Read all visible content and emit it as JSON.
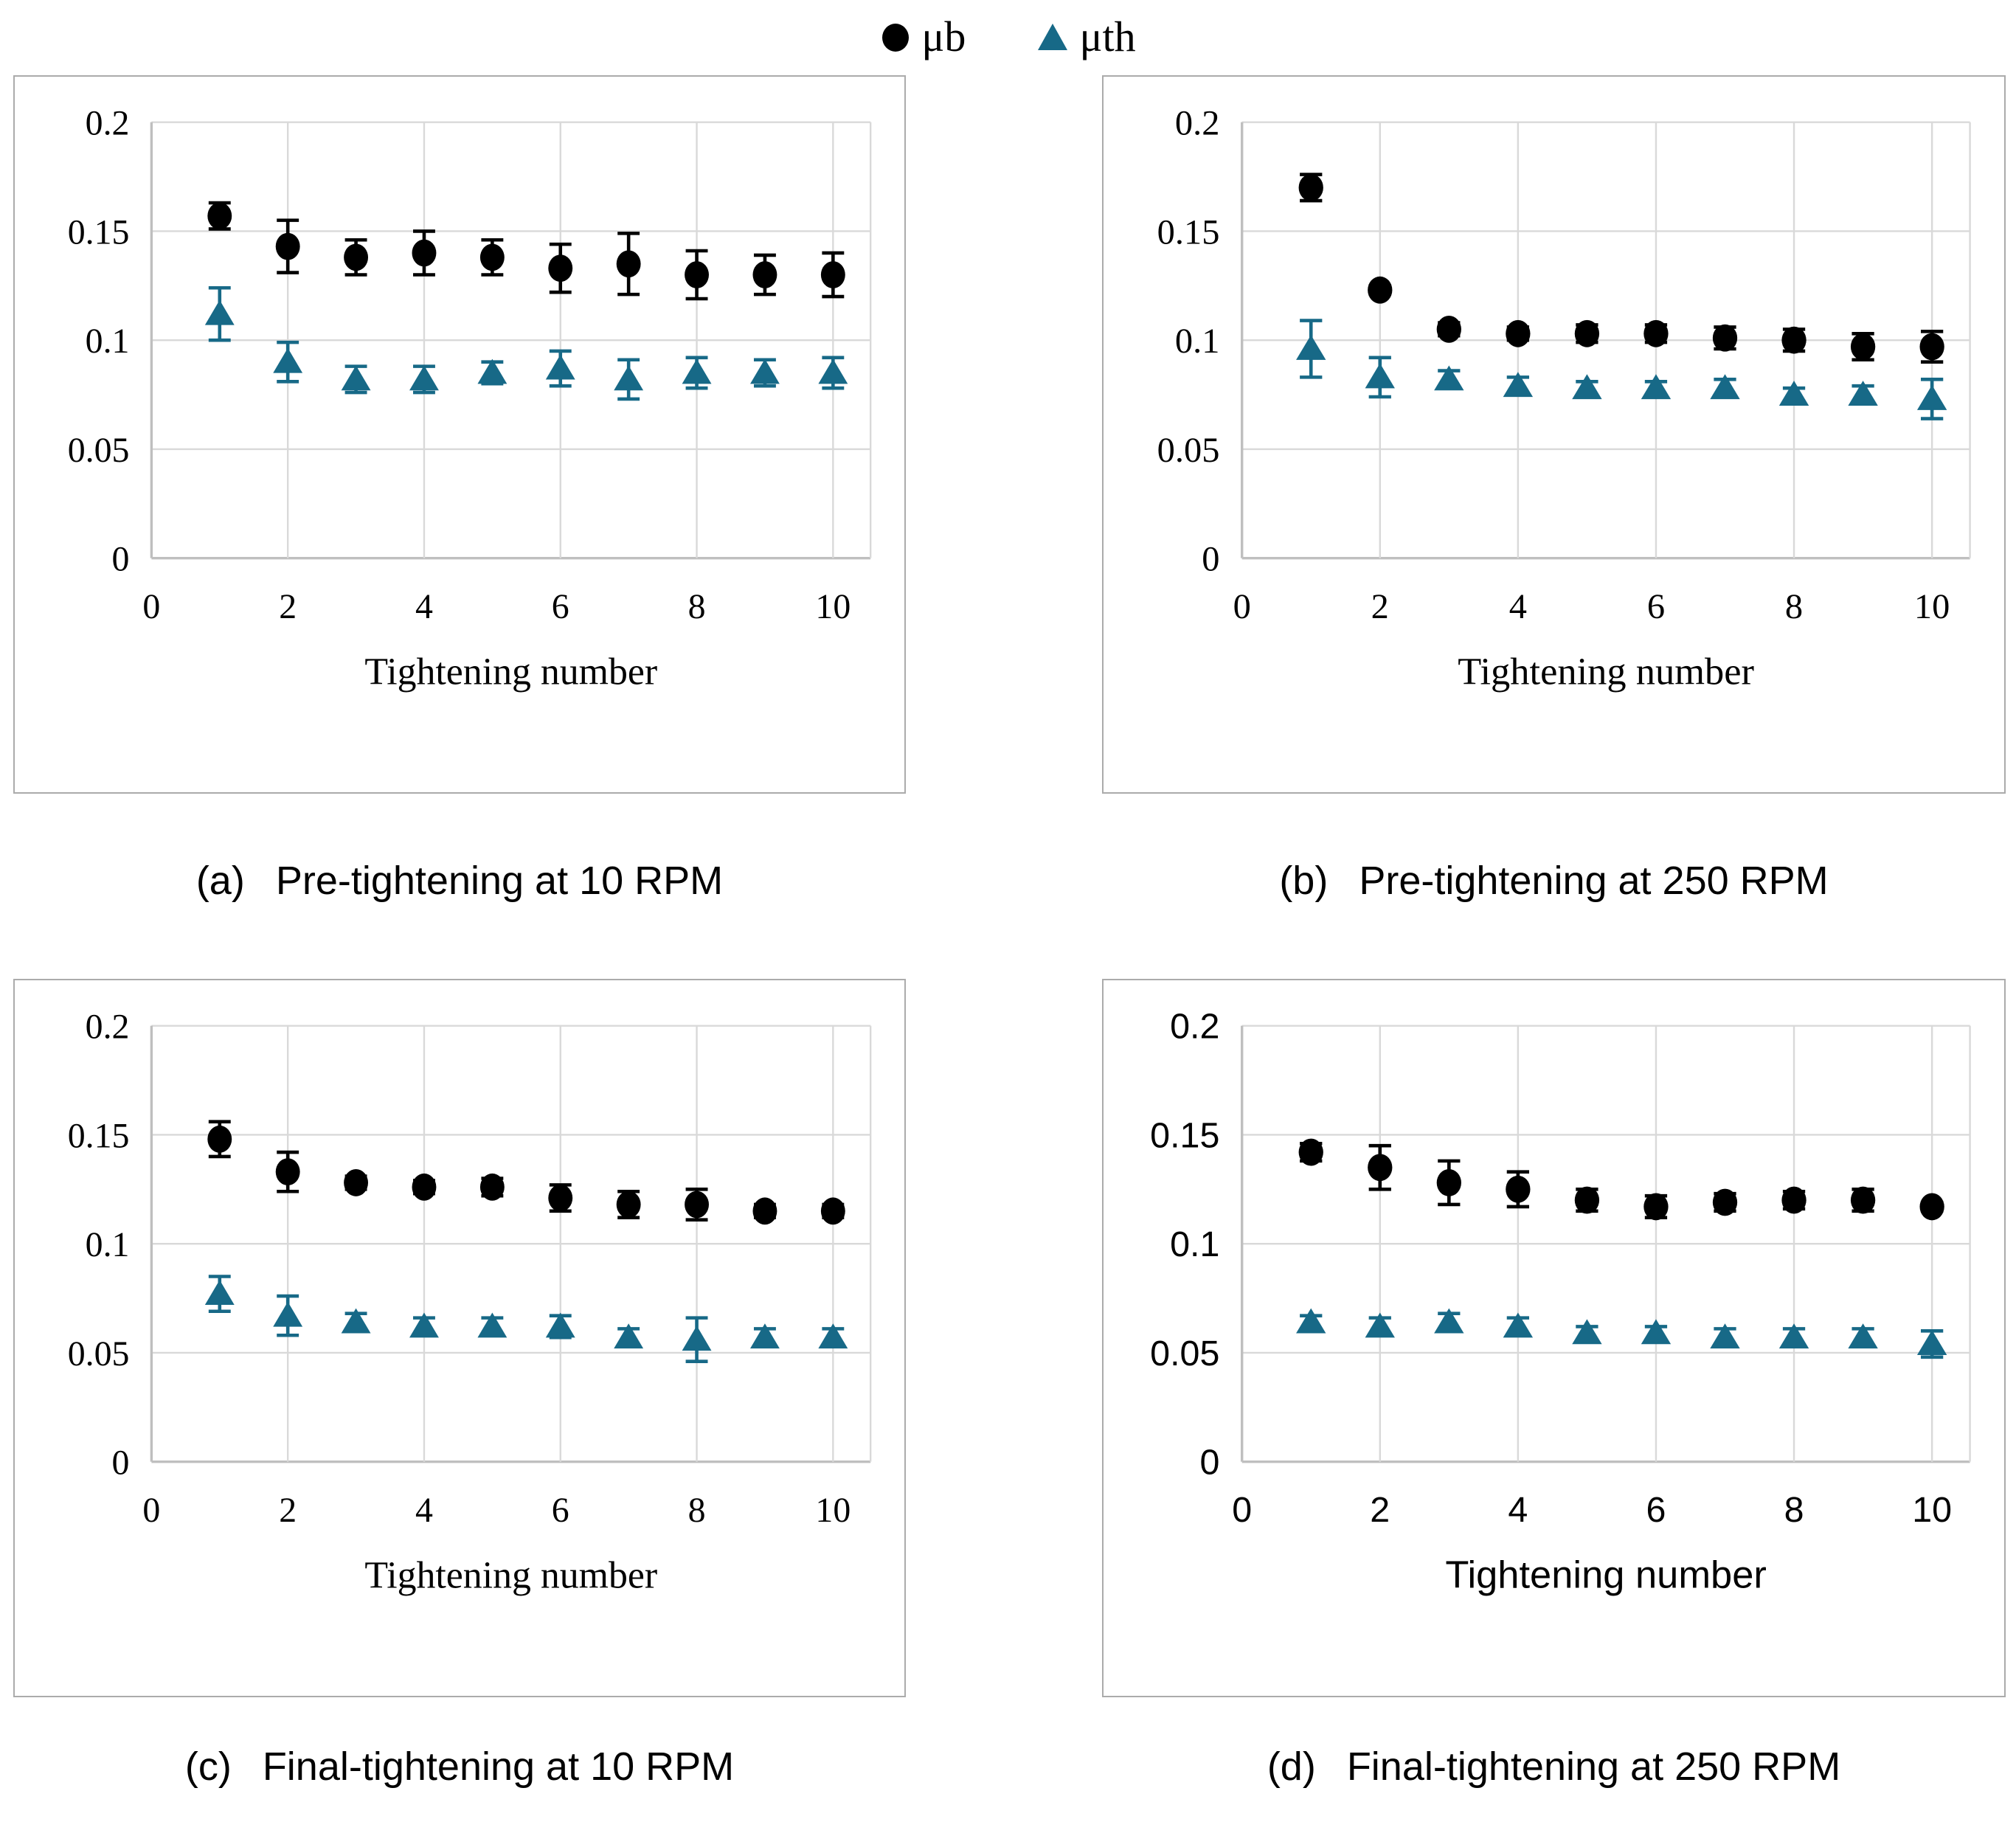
{
  "legend": {
    "position": "top-center",
    "items": [
      {
        "label": "μb",
        "marker": "circle",
        "color": "#000000"
      },
      {
        "label": "μth",
        "marker": "triangle",
        "color": "#176987"
      }
    ]
  },
  "axes": {
    "xlabel": "Tightening number",
    "x_ticks": [
      0,
      2,
      4,
      6,
      8,
      10
    ],
    "y_tick_labels": [
      "0",
      "0.05",
      "0.1",
      "0.15",
      "0.2"
    ],
    "y_tick_values": [
      0,
      0.05,
      0.1,
      0.15,
      0.2
    ],
    "xlim": [
      0,
      10.55
    ],
    "ylim": [
      0,
      0.2
    ],
    "grid": true
  },
  "colors": {
    "mub": "#000000",
    "muth": "#176987",
    "gridline": "#d9d9d9",
    "axis_line": "#bfbfbf",
    "panel_border": "#ababab"
  },
  "chart_data": [
    {
      "id": "a",
      "type": "scatter",
      "caption_prefix": "(a)",
      "caption_text": "Pre-tightening at 10 RPM",
      "tick_font": "serif",
      "xlabel": "Tightening number",
      "x": [
        1,
        2,
        3,
        4,
        5,
        6,
        7,
        8,
        9,
        10
      ],
      "series": [
        {
          "name": "μb",
          "marker": "circle",
          "color": "#000000",
          "values": [
            0.157,
            0.143,
            0.138,
            0.14,
            0.138,
            0.133,
            0.135,
            0.13,
            0.13,
            0.13
          ],
          "errors": [
            0.006,
            0.012,
            0.008,
            0.01,
            0.008,
            0.011,
            0.014,
            0.011,
            0.009,
            0.01
          ]
        },
        {
          "name": "μth",
          "marker": "triangle",
          "color": "#176987",
          "values": [
            0.112,
            0.09,
            0.082,
            0.082,
            0.085,
            0.087,
            0.082,
            0.085,
            0.085,
            0.085
          ],
          "errors": [
            0.012,
            0.009,
            0.006,
            0.006,
            0.005,
            0.008,
            0.009,
            0.007,
            0.006,
            0.007
          ]
        }
      ]
    },
    {
      "id": "b",
      "type": "scatter",
      "caption_prefix": "(b)",
      "caption_text": "Pre-tightening at 250 RPM",
      "tick_font": "serif",
      "xlabel": "Tightening number",
      "x": [
        1,
        2,
        3,
        4,
        5,
        6,
        7,
        8,
        9,
        10
      ],
      "series": [
        {
          "name": "μb",
          "marker": "circle",
          "color": "#000000",
          "values": [
            0.17,
            0.123,
            0.105,
            0.103,
            0.103,
            0.103,
            0.101,
            0.1,
            0.097,
            0.097
          ],
          "errors": [
            0.006,
            0.002,
            0.003,
            0.003,
            0.004,
            0.004,
            0.005,
            0.005,
            0.006,
            0.007
          ]
        },
        {
          "name": "μth",
          "marker": "triangle",
          "color": "#176987",
          "values": [
            0.096,
            0.083,
            0.082,
            0.079,
            0.078,
            0.078,
            0.078,
            0.075,
            0.075,
            0.073
          ],
          "errors": [
            0.013,
            0.009,
            0.004,
            0.004,
            0.003,
            0.003,
            0.004,
            0.003,
            0.004,
            0.009
          ]
        }
      ]
    },
    {
      "id": "c",
      "type": "scatter",
      "caption_prefix": "(c)",
      "caption_text": "Final-tightening at 10 RPM",
      "tick_font": "serif",
      "xlabel": "Tightening number",
      "x": [
        1,
        2,
        3,
        4,
        5,
        6,
        7,
        8,
        9,
        10
      ],
      "series": [
        {
          "name": "μb",
          "marker": "circle",
          "color": "#000000",
          "values": [
            0.148,
            0.133,
            0.128,
            0.126,
            0.126,
            0.121,
            0.118,
            0.118,
            0.115,
            0.115
          ],
          "errors": [
            0.008,
            0.009,
            0.003,
            0.003,
            0.004,
            0.006,
            0.006,
            0.007,
            0.003,
            0.003
          ]
        },
        {
          "name": "μth",
          "marker": "triangle",
          "color": "#176987",
          "values": [
            0.077,
            0.067,
            0.064,
            0.062,
            0.062,
            0.062,
            0.057,
            0.056,
            0.057,
            0.057
          ],
          "errors": [
            0.008,
            0.009,
            0.004,
            0.004,
            0.004,
            0.005,
            0.004,
            0.01,
            0.004,
            0.004
          ]
        }
      ]
    },
    {
      "id": "d",
      "type": "scatter",
      "caption_prefix": "(d)",
      "caption_text": "Final-tightening at 250 RPM",
      "tick_font": "sans",
      "xlabel": "Tightening number",
      "x": [
        1,
        2,
        3,
        4,
        5,
        6,
        7,
        8,
        9,
        10
      ],
      "series": [
        {
          "name": "μb",
          "marker": "circle",
          "color": "#000000",
          "values": [
            0.142,
            0.135,
            0.128,
            0.125,
            0.12,
            0.117,
            0.119,
            0.12,
            0.12,
            0.117
          ],
          "errors": [
            0.004,
            0.01,
            0.01,
            0.008,
            0.005,
            0.005,
            0.004,
            0.004,
            0.005,
            0.002
          ]
        },
        {
          "name": "μth",
          "marker": "triangle",
          "color": "#176987",
          "values": [
            0.064,
            0.062,
            0.064,
            0.062,
            0.059,
            0.059,
            0.057,
            0.057,
            0.057,
            0.054
          ],
          "errors": [
            0.003,
            0.004,
            0.004,
            0.004,
            0.003,
            0.003,
            0.004,
            0.004,
            0.004,
            0.006
          ]
        }
      ]
    }
  ]
}
